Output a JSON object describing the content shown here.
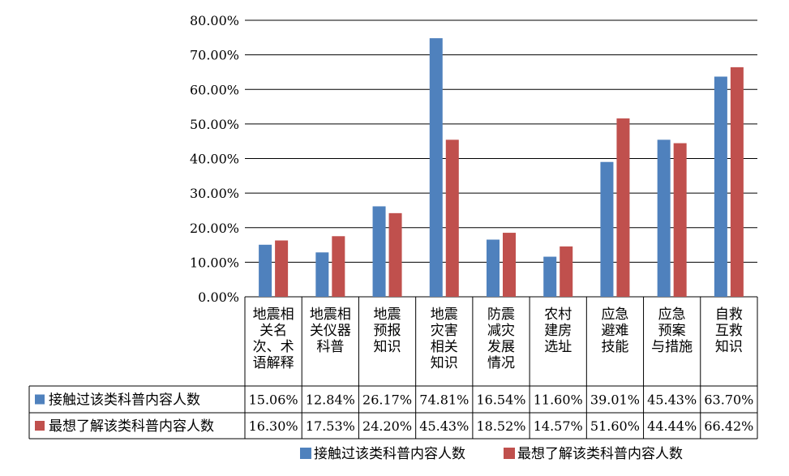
{
  "chart_data": {
    "type": "bar",
    "categories": [
      [
        "地震相",
        "关名",
        "次、术",
        "语解释"
      ],
      [
        "地震相",
        "关仪器",
        "科普"
      ],
      [
        "地震",
        "预报",
        "知识"
      ],
      [
        "地震",
        "灾害",
        "相关",
        "知识"
      ],
      [
        "防震",
        "减灾",
        "发展",
        "情况"
      ],
      [
        "农村",
        "建房",
        "选址"
      ],
      [
        "应急",
        "避难",
        "技能"
      ],
      [
        "应急",
        "预案",
        "与措施"
      ],
      [
        "自救",
        "互救",
        "知识"
      ]
    ],
    "series": [
      {
        "name": "接触过该类科普内容人数",
        "color": "#4f81bd",
        "values": [
          15.06,
          12.84,
          26.17,
          74.81,
          16.54,
          11.6,
          39.01,
          45.43,
          63.7
        ],
        "labels": [
          "15.06%",
          "12.84%",
          "26.17%",
          "74.81%",
          "16.54%",
          "11.60%",
          "39.01%",
          "45.43%",
          "63.70%"
        ]
      },
      {
        "name": "最想了解该类科普内容人数",
        "color": "#c0504d",
        "values": [
          16.3,
          17.53,
          24.2,
          45.43,
          18.52,
          14.57,
          51.6,
          44.44,
          66.42
        ],
        "labels": [
          "16.30%",
          "17.53%",
          "24.20%",
          "45.43%",
          "18.52%",
          "14.57%",
          "51.60%",
          "44.44%",
          "66.42%"
        ]
      }
    ],
    "yticks": [
      "0.00%",
      "10.00%",
      "20.00%",
      "30.00%",
      "40.00%",
      "50.00%",
      "60.00%",
      "70.00%",
      "80.00%"
    ],
    "ylim": [
      0,
      80
    ],
    "grid": true,
    "legend_position": "bottom",
    "data_table": true
  }
}
